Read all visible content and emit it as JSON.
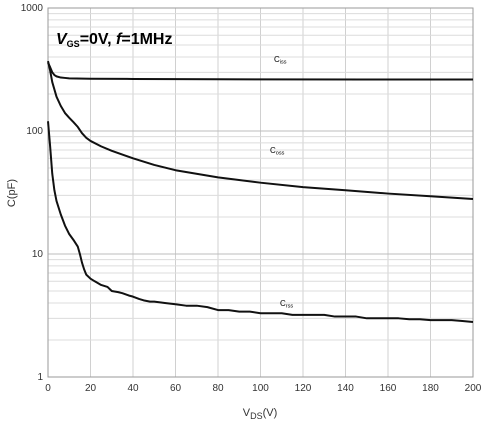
{
  "chart_data": {
    "type": "line",
    "title": {
      "v_symbol": "V",
      "v_sub": "GS",
      "v_value": "=0V, ",
      "f_symbol": "f",
      "f_value": "=1MHz"
    },
    "xlabel": {
      "main": "V",
      "sub": "DS",
      "unit": "(V)"
    },
    "ylabel": "C(pF)",
    "xlim": [
      0,
      200
    ],
    "ylim": [
      1,
      1000
    ],
    "y_scale": "log",
    "grid": true,
    "x_ticks": [
      "0",
      "20",
      "40",
      "60",
      "80",
      "100",
      "120",
      "140",
      "160",
      "180",
      "200"
    ],
    "y_ticks": [
      "1",
      "10",
      "100",
      "1000"
    ],
    "series": [
      {
        "label_main": "C",
        "label_sub": "iss",
        "x": [
          0,
          1,
          2,
          3,
          4,
          6,
          8,
          10,
          20,
          40,
          60,
          100,
          150,
          200
        ],
        "y": [
          360,
          330,
          300,
          285,
          278,
          272,
          270,
          268,
          266,
          265,
          264,
          263,
          262,
          262
        ]
      },
      {
        "label_main": "C",
        "label_sub": "oss",
        "x": [
          0,
          1,
          2,
          4,
          6,
          8,
          10,
          12,
          14,
          16,
          18,
          20,
          25,
          30,
          40,
          50,
          60,
          80,
          100,
          120,
          140,
          160,
          180,
          200
        ],
        "y": [
          370,
          310,
          250,
          190,
          160,
          140,
          128,
          118,
          108,
          96,
          88,
          83,
          75,
          69,
          60,
          53,
          48,
          42,
          38,
          35,
          33,
          31,
          29.5,
          28
        ]
      },
      {
        "label_main": "C",
        "label_sub": "rss",
        "x": [
          0,
          1,
          2,
          3,
          4,
          6,
          8,
          10,
          12,
          14,
          15,
          16,
          17,
          18,
          20,
          22,
          25,
          28,
          30,
          33,
          35,
          38,
          40,
          43,
          45,
          48,
          50,
          55,
          60,
          65,
          70,
          75,
          80,
          85,
          90,
          95,
          100,
          105,
          110,
          115,
          120,
          125,
          130,
          135,
          140,
          145,
          150,
          155,
          160,
          165,
          170,
          175,
          180,
          185,
          190,
          195,
          200
        ],
        "y": [
          120,
          75,
          45,
          33,
          27,
          21,
          17,
          14.5,
          13,
          11.5,
          10,
          8.5,
          7.5,
          6.8,
          6.3,
          6.0,
          5.6,
          5.4,
          5.0,
          4.9,
          4.8,
          4.6,
          4.5,
          4.3,
          4.2,
          4.1,
          4.1,
          4.0,
          3.9,
          3.8,
          3.8,
          3.7,
          3.5,
          3.5,
          3.4,
          3.4,
          3.3,
          3.3,
          3.3,
          3.2,
          3.2,
          3.2,
          3.2,
          3.1,
          3.1,
          3.1,
          3.0,
          3.0,
          3.0,
          3.0,
          2.95,
          2.95,
          2.9,
          2.9,
          2.9,
          2.85,
          2.8
        ]
      }
    ]
  }
}
